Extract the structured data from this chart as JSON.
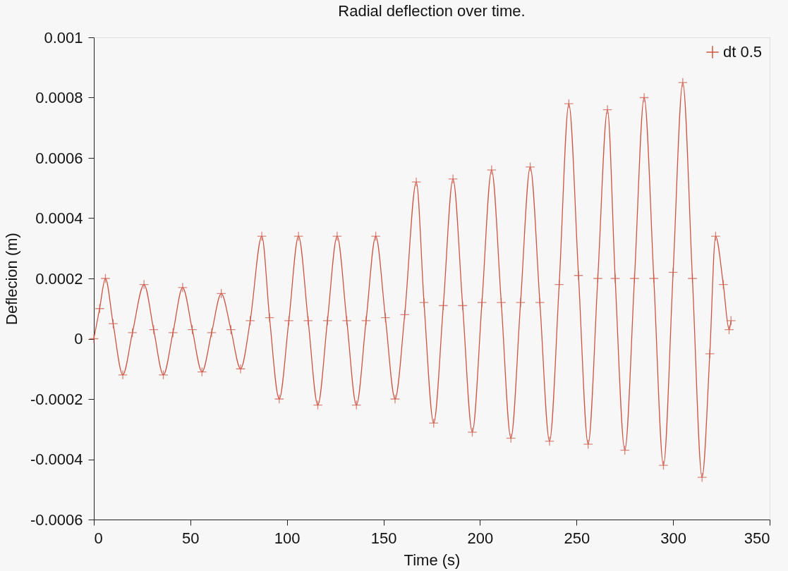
{
  "chart_data": {
    "type": "line",
    "title": "Radial deflection over time.",
    "xlabel": "Time (s)",
    "ylabel": "Deflecion (m)",
    "xlim": [
      0,
      350
    ],
    "xticks": [
      0,
      50,
      100,
      150,
      200,
      250,
      300,
      350
    ],
    "ylim": [
      -0.0006,
      0.001
    ],
    "yticks": [
      -0.0006,
      -0.0004,
      -0.0002,
      0,
      0.0002,
      0.0004,
      0.0006,
      0.0008,
      0.001
    ],
    "grid": false,
    "legend": "top right",
    "marker": "cross",
    "line_style": "solid",
    "series": [
      {
        "name": "dt 0.5",
        "color": "#cc5544",
        "x": [
          0,
          3,
          6,
          10,
          15,
          20,
          26,
          31,
          36,
          41,
          46,
          51,
          56,
          61,
          66,
          71,
          76,
          81,
          87,
          91,
          96,
          101,
          106,
          111,
          116,
          121,
          126,
          131,
          136,
          141,
          146,
          151,
          156,
          161,
          167,
          171,
          176,
          181,
          186,
          191,
          196,
          201,
          206,
          211,
          216,
          221,
          226,
          231,
          236,
          241,
          246,
          251,
          256,
          261,
          266,
          270,
          275,
          280,
          285,
          290,
          295,
          300,
          305,
          310,
          315,
          319,
          322,
          326,
          329,
          330
        ],
        "values": [
          0,
          0.0001,
          0.0002,
          5e-05,
          -0.00012,
          2e-05,
          0.00018,
          3e-05,
          -0.00012,
          2e-05,
          0.00017,
          3e-05,
          -0.00011,
          2e-05,
          0.00015,
          3e-05,
          -0.0001,
          6e-05,
          0.00034,
          7e-05,
          -0.0002,
          6e-05,
          0.00034,
          6e-05,
          -0.00022,
          6e-05,
          0.00034,
          6e-05,
          -0.00022,
          6e-05,
          0.00034,
          7e-05,
          -0.0002,
          8e-05,
          0.00052,
          0.00012,
          -0.00028,
          0.00011,
          0.00053,
          0.00011,
          -0.00031,
          0.00012,
          0.00056,
          0.00012,
          -0.00033,
          0.00012,
          0.00057,
          0.00012,
          -0.00034,
          0.00018,
          0.00078,
          0.00021,
          -0.00035,
          0.0002,
          0.00076,
          0.0002,
          -0.00037,
          0.0002,
          0.0008,
          0.0002,
          -0.00042,
          0.00022,
          0.00085,
          0.0002,
          -0.00046,
          -5e-05,
          0.00034,
          0.00018,
          3e-05,
          6e-05
        ]
      }
    ]
  }
}
